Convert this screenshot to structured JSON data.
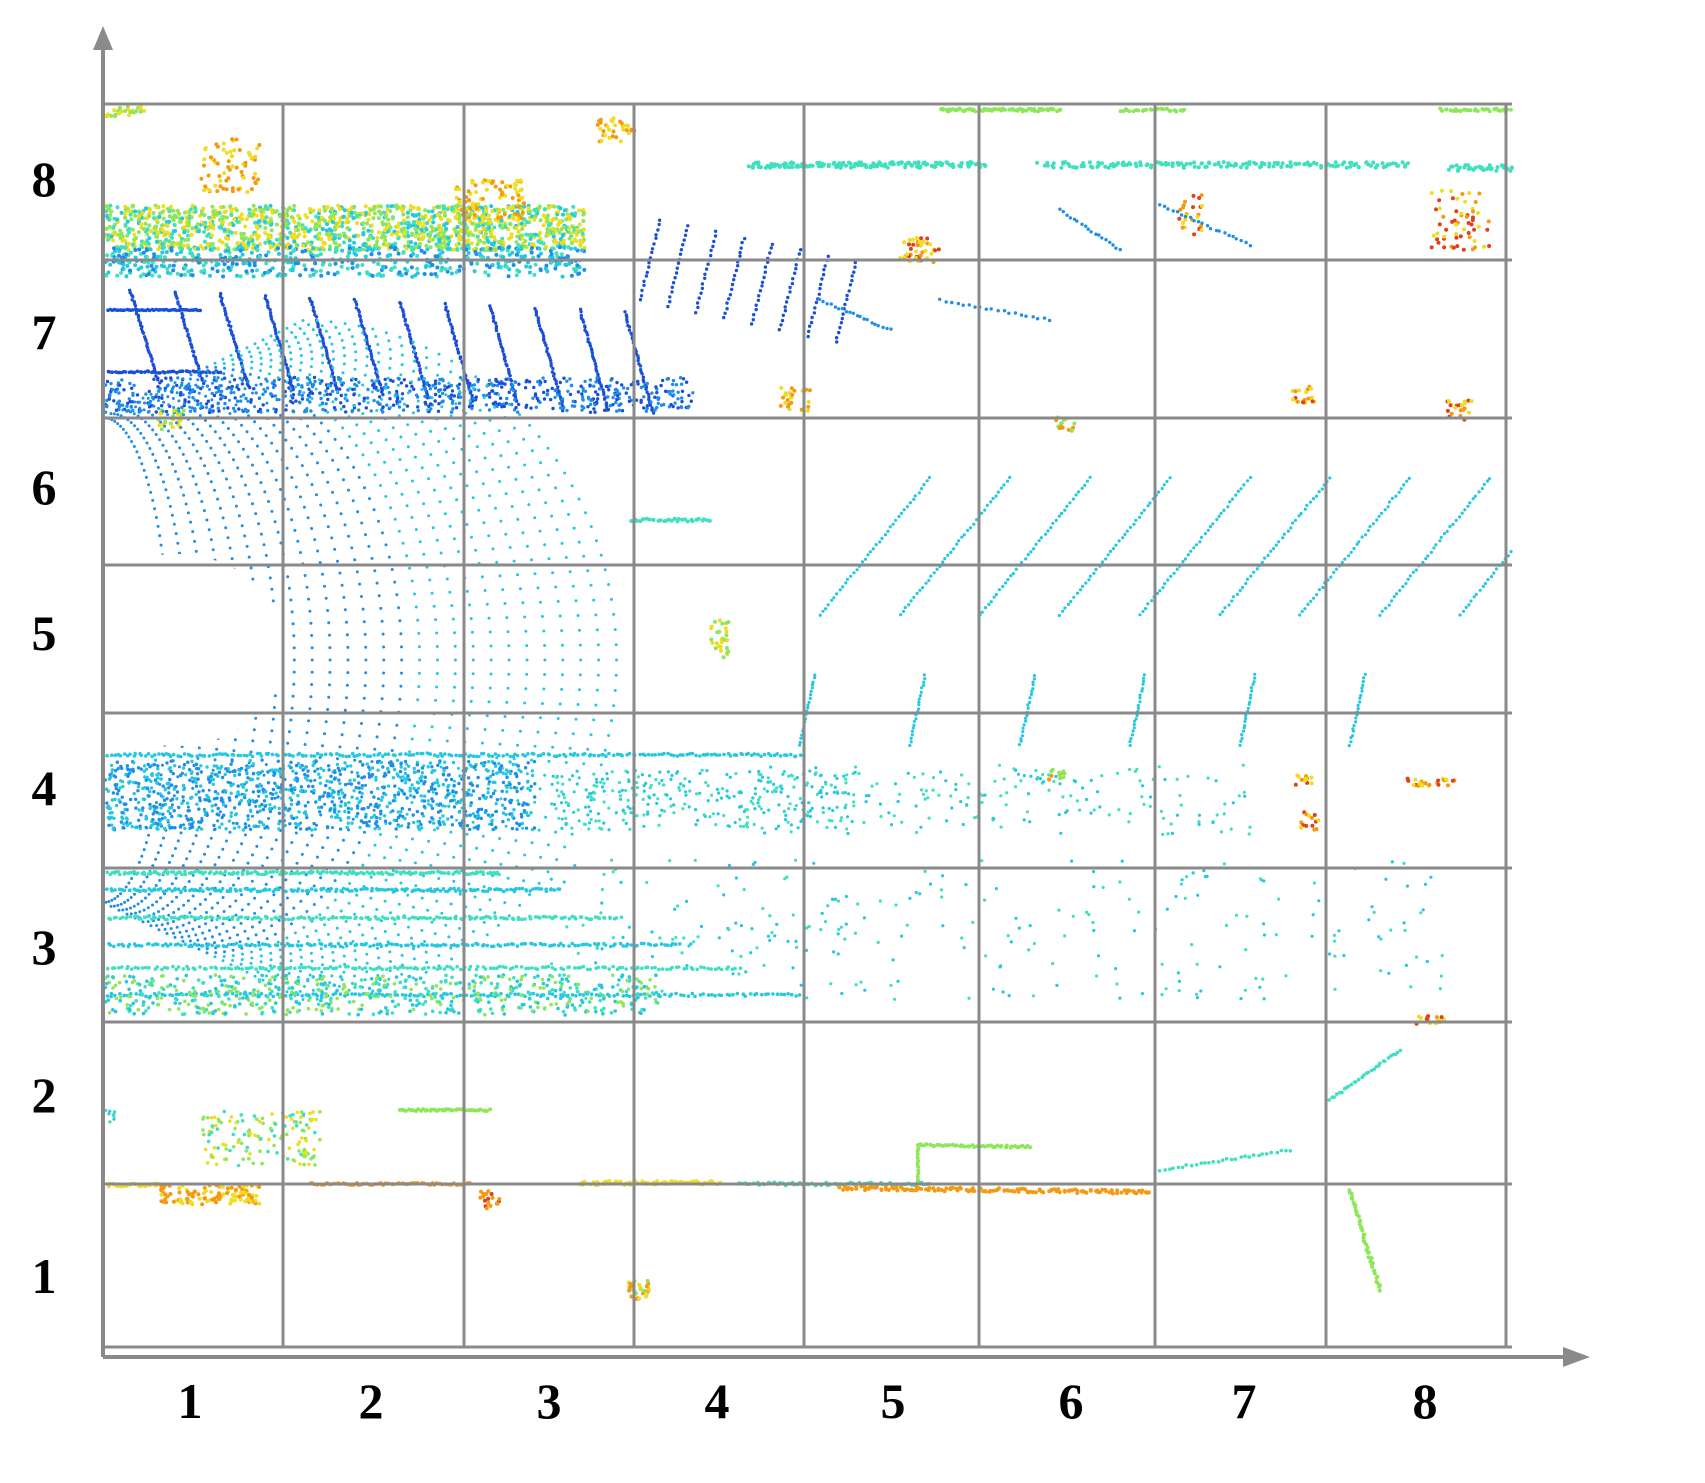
{
  "grid": {
    "columns": [
      "1",
      "2",
      "3",
      "4",
      "5",
      "6",
      "7",
      "8"
    ],
    "rows": [
      "8",
      "7",
      "6",
      "5",
      "4",
      "3",
      "2",
      "1"
    ]
  },
  "colors": {
    "grid_line": "#8a8a8a",
    "axis": "#8a8a8a",
    "scan_deep_blue": "#1a4fd6",
    "scan_blue": "#1f8ee8",
    "scan_cyan": "#25c8e0",
    "scan_teal": "#3fe0c0",
    "scan_green": "#8ee65a",
    "scan_yellow": "#f0dc20",
    "scan_orange": "#f59a10",
    "scan_red": "#e0401a"
  }
}
